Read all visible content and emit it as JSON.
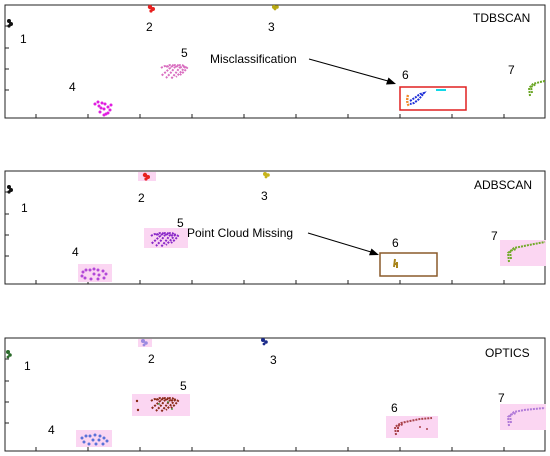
{
  "panels": [
    {
      "title": "TDBSCAN",
      "clusters": [
        {
          "label": "1",
          "color": "#111111"
        },
        {
          "label": "2",
          "color": "#e8201f"
        },
        {
          "label": "3",
          "color": "#b8a812"
        },
        {
          "label": "4",
          "color": "#e01ee0"
        },
        {
          "label": "5",
          "color": "#d96fc0"
        },
        {
          "label": "6",
          "color": "#1e2fd8"
        },
        {
          "label": "7",
          "color": "#6aa624"
        }
      ],
      "annotation": {
        "text": "Misclassification",
        "box_color": "#e02020"
      }
    },
    {
      "title": "ADBSCAN",
      "clusters": [
        {
          "label": "1",
          "color": "#111111"
        },
        {
          "label": "2",
          "color": "#e8201f"
        },
        {
          "label": "3",
          "color": "#c8b41a"
        },
        {
          "label": "4",
          "color": "#b248d8"
        },
        {
          "label": "5",
          "color": "#8a28c8"
        },
        {
          "label": "6",
          "color": "#a8841a"
        },
        {
          "label": "7",
          "color": "#72aa2a"
        }
      ],
      "annotation": {
        "text": "Point Cloud Missing",
        "box_color": "#8a5a2a"
      }
    },
    {
      "title": "OPTICS",
      "clusters": [
        {
          "label": "1",
          "color": "#2a6a2a"
        },
        {
          "label": "2",
          "color": "#9a8ae0"
        },
        {
          "label": "3",
          "color": "#1a2a8a"
        },
        {
          "label": "4",
          "color": "#5a72d8"
        },
        {
          "label": "5",
          "color": "#8a2a18"
        },
        {
          "label": "6",
          "color": "#a8424a"
        },
        {
          "label": "7",
          "color": "#b07ad8"
        }
      ],
      "annotation": null
    }
  ],
  "colors": {
    "highlight": "#fbd6f2",
    "cyan_fragment": "#10d8e8",
    "orange_fragment": "#f08a2a",
    "axis": "#222222"
  }
}
